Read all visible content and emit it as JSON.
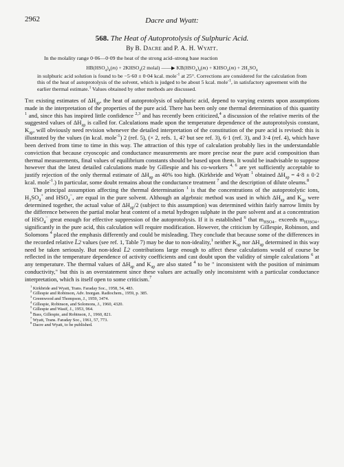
{
  "page_number": "2962",
  "running_head": "Dacre and Wyatt:",
  "article_number": "568.",
  "title": "The Heat of Autoprotolysis of Sulphuric Acid.",
  "byline_prefix": "By ",
  "author1": "B. Dacre",
  "author_conj": " and ",
  "author2": "P. A. H. Wyatt.",
  "abstract_p1": "In the molality range 0·06—0·09 the heat of the strong acid–strong base reaction",
  "reaction_eq": "HB(HSO4)4(m) + 2KHSO4(2 molal) ——→ KB(HSO4)4(m) + KHSO4(m) + 2H2SO4",
  "abstract_p2_a": "in sulphuric acid solution is found to be −5·60 ± 0·04 kcal. mole",
  "abstract_p2_b": " at 25°. Corrections are considered for the calculation from this of the heat of autoprotolysis of the solvent, which is judged to be about 5 kcal. mole",
  "abstract_p2_c": ", in satisfactory agreement with the earlier thermal estimate.",
  "abstract_p2_d": " Values obtained by other methods are discussed.",
  "body_p1_a": "The",
  "body_p1_b": " existing estimates of ΔH",
  "body_p1_c": ", the heat of autoprotolysis of sulphuric acid, depend to varying extents upon assumptions made in the interpretation of the properties of the pure acid. There has been only one thermal determination of this quantity ",
  "body_p1_d": " and, since this has inspired little confidence ",
  "body_p1_e": " and has recently been criticized,",
  "body_p1_f": " a discussion of the relative merits of the suggested values of ΔH",
  "body_p1_g": " is called for. Calculations made upon the temperature dependence of the autoprotolysis constant, K",
  "body_p1_h": ", will obviously need revision whenever the detailed interpretation of the constitution of the pure acid is revised: this is illustrated by the values (in kcal. mole",
  "body_p1_i": ") 2 (ref. 5), (× 2, refs. 1, 4? but see ref. 3), 6·1 (ref. 3), and 3·4 (ref. 4), which have been derived from time to time in this way. The attraction of this type of calculation probably lies in the understandable conviction that because cryoscopic and conductance measurements are more precise near the pure acid composition than thermal measurements, final values of equilibrium constants should be based upon them. It would be inadvisable to suppose however that the latest detailed calculations made by Gillespie and his co-workers ",
  "body_p1_j": " are yet sufficiently acceptable to justify rejection of the only thermal estimate of ΔH",
  "body_p1_k": " as 40% too high. (Kirkbride and Wyatt ",
  "body_p1_l": " obtained ΔH",
  "body_p1_m": " = 4·8 ± 0·2 kcal. mole",
  "body_p1_n": ".) In particular, some doubt remains about the conductance treatment ",
  "body_p1_o": " and the description of dilute oleums.",
  "body_p2_a": "The principal assumption affecting the thermal determination ",
  "body_p2_b": " is that the concentrations of the autoprotolytic ions, H",
  "body_p2_c": "SO",
  "body_p2_d": " and HSO",
  "body_p2_e": ", are equal in the pure solvent. Although an algebraic method was used in which ΔH",
  "body_p2_f": " and K",
  "body_p2_g": " were determined together, the actual value of ΔH",
  "body_p2_h": "/2 (subject to this assumption) was determined within fairly narrow limits by the difference between the partial molar heat content of a metal hydrogen sulphate in the pure solvent and at a concentration of HSO",
  "body_p2_i": " great enough for effective suppression of the autoprotolysis. If it is established ",
  "body_p2_j": " that  m",
  "body_p2_k": "  exceeds  m",
  "body_p2_l": " significantly in the pure acid, this calculation will require modification. However, the criticism by Gillespie, Robinson, and Solomons ",
  "body_p2_m": " placed the emphasis differently and could be misleading. They conclude that because some of the differences in the recorded relative ",
  "body_p2_n": " values (see ref. 1, Table 7) may be due to non-ideality,",
  "body_p2_o": " neither K",
  "body_p2_p": " nor ΔH",
  "body_p2_q": " determined in this way need be taken seriously. But non-ideal ",
  "body_p2_r": " contributions large enough to affect these calculations would of course be reflected in the temperature dependence of activity coefficients and cast doubt upon the validity of simple calculations ",
  "body_p2_s": " at any temperature. The thermal values of ΔH",
  "body_p2_t": " and K",
  "body_p2_u": " are also stated ",
  "body_p2_v": " to be \" inconsistent with the position of minimum conductivity,\" but this is an overstatement since these values are actually only inconsistent with a particular conductance interpretation, which is itself open to some criticism.",
  "ref1": " Kirkbride and Wyatt, Trans. Faraday Soc., 1958, 54, 483.",
  "ref2": " Gillespie and Robinson, Adv. Inorgan. Radiochem., 1959, p. 385.",
  "ref3": " Greenwood and Thompson, J., 1959, 3474.",
  "ref4": " Gillespie, Robinson, and Solomons, J., 1960, 4320.",
  "ref5": " Gillespie and Wasif, J., 1953, 964.",
  "ref6": " Bass, Gillespie, and Robinson, J., 1960, 821.",
  "ref7": " Wyatt, Trans. Faraday Soc., 1961, 57, 773.",
  "ref8": " Dacre and Wyatt, to be published.",
  "sub_ap": "ap",
  "sub_L2": "L̄2",
  "sub_hso4": "HSO4−",
  "sub_h3so4": "H3SO4+"
}
